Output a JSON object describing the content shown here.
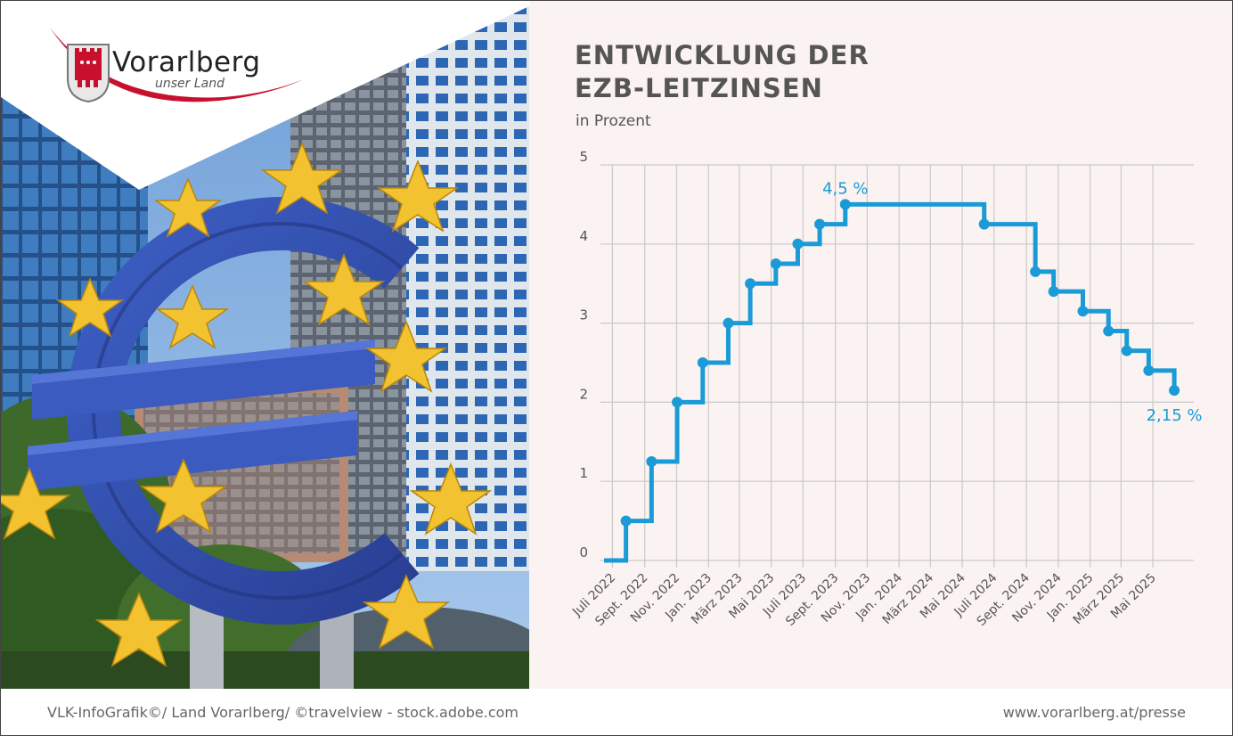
{
  "brand": {
    "name": "Vorarlberg",
    "tagline": "unser Land",
    "accent_color": "#c8102e"
  },
  "header": {
    "title_line1": "ENTWICKLUNG DER",
    "title_line2": "EZB-LEITZINSEN",
    "subtitle": "in Prozent"
  },
  "footer": {
    "credit": "VLK-InfoGrafik©/ Land Vorarlberg/ ©travelview - stock.adobe.com",
    "url": "www.vorarlberg.at/presse"
  },
  "chart_data": {
    "type": "line",
    "step": true,
    "title": "ENTWICKLUNG DER EZB-LEITZINSEN",
    "subtitle": "in Prozent",
    "color": "#1a9bd7",
    "ylim": [
      0,
      5
    ],
    "yticks": [
      0,
      1,
      2,
      3,
      4,
      5
    ],
    "grid": true,
    "x_tick_labels": [
      "Juli 2022",
      "Sept. 2022",
      "Nov. 2022",
      "Jan. 2023",
      "März 2023",
      "Mai 2023",
      "Juli 2023",
      "Sept. 2023",
      "Nov. 2023",
      "Jan. 2024",
      "März 2024",
      "Mai 2024",
      "Juli 2024",
      "Sept. 2024",
      "Nov. 2024",
      "Jan. 2025",
      "März 2025",
      "Mai 2025"
    ],
    "x_tick_months": [
      "2022-07",
      "2022-09",
      "2022-11",
      "2023-01",
      "2023-03",
      "2023-05",
      "2023-07",
      "2023-09",
      "2023-11",
      "2024-01",
      "2024-03",
      "2024-05",
      "2024-07",
      "2024-09",
      "2024-11",
      "2025-01",
      "2025-03",
      "2025-05"
    ],
    "xlim": [
      "2022-06-15",
      "2025-07-15"
    ],
    "series": [
      {
        "points": [
          {
            "date": "2022-06-15",
            "value": 0.0,
            "marker": false
          },
          {
            "date": "2022-07-27",
            "value": 0.5,
            "marker": true
          },
          {
            "date": "2022-09-14",
            "value": 1.25,
            "marker": true
          },
          {
            "date": "2022-11-02",
            "value": 2.0,
            "marker": true
          },
          {
            "date": "2022-12-21",
            "value": 2.5,
            "marker": true
          },
          {
            "date": "2023-02-08",
            "value": 3.0,
            "marker": true
          },
          {
            "date": "2023-03-22",
            "value": 3.5,
            "marker": true
          },
          {
            "date": "2023-05-10",
            "value": 3.75,
            "marker": true
          },
          {
            "date": "2023-06-21",
            "value": 4.0,
            "marker": true
          },
          {
            "date": "2023-08-02",
            "value": 4.25,
            "marker": true
          },
          {
            "date": "2023-09-20",
            "value": 4.5,
            "marker": true
          },
          {
            "date": "2024-06-12",
            "value": 4.25,
            "marker": true
          },
          {
            "date": "2024-09-18",
            "value": 3.65,
            "marker": true
          },
          {
            "date": "2024-10-23",
            "value": 3.4,
            "marker": true
          },
          {
            "date": "2024-12-18",
            "value": 3.15,
            "marker": true
          },
          {
            "date": "2025-02-05",
            "value": 2.9,
            "marker": true
          },
          {
            "date": "2025-03-12",
            "value": 2.65,
            "marker": true
          },
          {
            "date": "2025-04-23",
            "value": 2.4,
            "marker": true
          },
          {
            "date": "2025-06-11",
            "value": 2.15,
            "marker": true
          }
        ]
      }
    ],
    "annotations": [
      {
        "text": "4,5 %",
        "date": "2023-09-20",
        "value": 4.5,
        "position": "above"
      },
      {
        "text": "2,15 %",
        "date": "2025-06-11",
        "value": 2.15,
        "position": "below"
      }
    ]
  }
}
